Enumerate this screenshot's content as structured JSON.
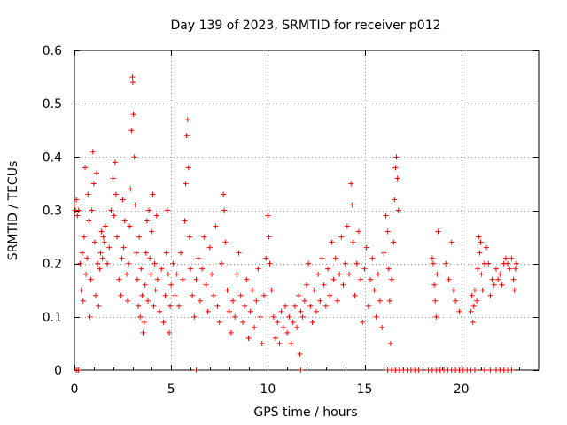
{
  "chart_data": {
    "type": "scatter",
    "title": "Day 139 of 2023, SRMTID for receiver p012",
    "xlabel": "GPS time / hours",
    "ylabel": "SRMTID / TECUs",
    "xlim": [
      0,
      24
    ],
    "ylim": [
      0,
      0.6
    ],
    "xticks": [
      0,
      5,
      10,
      15,
      20
    ],
    "yticks": [
      0,
      0.1,
      0.2,
      0.3,
      0.4,
      0.5,
      0.6
    ],
    "ytick_labels": [
      "0",
      "0.1",
      "0.2",
      "0.3",
      "0.4",
      "0.5",
      "0.6"
    ],
    "grid": true,
    "marker": "+",
    "color": "#ff0000",
    "series": [
      {
        "name": "SRMTID",
        "points": [
          [
            0.0,
            0.31
          ],
          [
            0.05,
            0.3
          ],
          [
            0.1,
            0.32
          ],
          [
            0.15,
            0.29
          ],
          [
            0.2,
            0.3
          ],
          [
            0.3,
            0.2
          ],
          [
            0.35,
            0.15
          ],
          [
            0.4,
            0.22
          ],
          [
            0.45,
            0.13
          ],
          [
            0.5,
            0.25
          ],
          [
            0.55,
            0.38
          ],
          [
            0.6,
            0.18
          ],
          [
            0.65,
            0.21
          ],
          [
            0.7,
            0.33
          ],
          [
            0.75,
            0.28
          ],
          [
            0.8,
            0.1
          ],
          [
            0.85,
            0.17
          ],
          [
            0.9,
            0.3
          ],
          [
            0.95,
            0.41
          ],
          [
            1.0,
            0.35
          ],
          [
            1.05,
            0.24
          ],
          [
            1.1,
            0.14
          ],
          [
            1.15,
            0.37
          ],
          [
            1.2,
            0.2
          ],
          [
            1.25,
            0.12
          ],
          [
            1.3,
            0.19
          ],
          [
            1.35,
            0.22
          ],
          [
            1.4,
            0.26
          ],
          [
            1.45,
            0.21
          ],
          [
            1.5,
            0.25
          ],
          [
            1.55,
            0.24
          ],
          [
            1.6,
            0.27
          ],
          [
            1.7,
            0.2
          ],
          [
            1.8,
            0.23
          ],
          [
            1.9,
            0.3
          ],
          [
            2.0,
            0.36
          ],
          [
            2.05,
            0.29
          ],
          [
            2.1,
            0.39
          ],
          [
            2.15,
            0.33
          ],
          [
            2.2,
            0.25
          ],
          [
            2.3,
            0.17
          ],
          [
            2.4,
            0.14
          ],
          [
            2.45,
            0.21
          ],
          [
            2.5,
            0.32
          ],
          [
            2.55,
            0.23
          ],
          [
            2.6,
            0.28
          ],
          [
            2.7,
            0.18
          ],
          [
            2.75,
            0.13
          ],
          [
            2.8,
            0.2
          ],
          [
            2.85,
            0.27
          ],
          [
            2.9,
            0.34
          ],
          [
            2.95,
            0.45
          ],
          [
            3.0,
            0.55
          ],
          [
            3.02,
            0.54
          ],
          [
            3.05,
            0.48
          ],
          [
            3.1,
            0.4
          ],
          [
            3.15,
            0.31
          ],
          [
            3.2,
            0.22
          ],
          [
            3.25,
            0.17
          ],
          [
            3.3,
            0.12
          ],
          [
            3.35,
            0.25
          ],
          [
            3.4,
            0.1
          ],
          [
            3.45,
            0.19
          ],
          [
            3.5,
            0.14
          ],
          [
            3.55,
            0.07
          ],
          [
            3.6,
            0.09
          ],
          [
            3.65,
            0.16
          ],
          [
            3.7,
            0.22
          ],
          [
            3.75,
            0.28
          ],
          [
            3.8,
            0.13
          ],
          [
            3.85,
            0.3
          ],
          [
            3.9,
            0.21
          ],
          [
            3.95,
            0.18
          ],
          [
            4.0,
            0.26
          ],
          [
            4.05,
            0.33
          ],
          [
            4.1,
            0.12
          ],
          [
            4.15,
            0.2
          ],
          [
            4.2,
            0.15
          ],
          [
            4.25,
            0.29
          ],
          [
            4.3,
            0.17
          ],
          [
            4.4,
            0.11
          ],
          [
            4.5,
            0.19
          ],
          [
            4.6,
            0.09
          ],
          [
            4.7,
            0.14
          ],
          [
            4.75,
            0.22
          ],
          [
            4.8,
            0.3
          ],
          [
            4.85,
            0.18
          ],
          [
            4.9,
            0.07
          ],
          [
            4.95,
            0.12
          ],
          [
            5.0,
            0.16
          ],
          [
            5.1,
            0.2
          ],
          [
            5.2,
            0.14
          ],
          [
            5.3,
            0.18
          ],
          [
            5.4,
            0.12
          ],
          [
            5.5,
            0.22
          ],
          [
            5.6,
            0.17
          ],
          [
            5.7,
            0.28
          ],
          [
            5.75,
            0.35
          ],
          [
            5.8,
            0.44
          ],
          [
            5.85,
            0.47
          ],
          [
            5.9,
            0.38
          ],
          [
            5.95,
            0.25
          ],
          [
            6.0,
            0.19
          ],
          [
            6.1,
            0.14
          ],
          [
            6.2,
            0.1
          ],
          [
            6.3,
            0.17
          ],
          [
            6.4,
            0.21
          ],
          [
            6.5,
            0.13
          ],
          [
            6.6,
            0.19
          ],
          [
            6.7,
            0.25
          ],
          [
            6.8,
            0.16
          ],
          [
            6.9,
            0.11
          ],
          [
            7.0,
            0.23
          ],
          [
            7.1,
            0.18
          ],
          [
            7.2,
            0.14
          ],
          [
            7.3,
            0.27
          ],
          [
            7.4,
            0.12
          ],
          [
            7.5,
            0.09
          ],
          [
            7.6,
            0.2
          ],
          [
            7.7,
            0.33
          ],
          [
            7.75,
            0.3
          ],
          [
            7.8,
            0.24
          ],
          [
            7.9,
            0.15
          ],
          [
            8.0,
            0.11
          ],
          [
            8.1,
            0.07
          ],
          [
            8.2,
            0.13
          ],
          [
            8.3,
            0.1
          ],
          [
            8.4,
            0.18
          ],
          [
            8.5,
            0.22
          ],
          [
            8.6,
            0.14
          ],
          [
            8.7,
            0.09
          ],
          [
            8.8,
            0.12
          ],
          [
            8.9,
            0.17
          ],
          [
            9.0,
            0.06
          ],
          [
            9.1,
            0.11
          ],
          [
            9.2,
            0.15
          ],
          [
            9.3,
            0.08
          ],
          [
            9.4,
            0.13
          ],
          [
            9.5,
            0.19
          ],
          [
            9.6,
            0.1
          ],
          [
            9.7,
            0.05
          ],
          [
            9.8,
            0.14
          ],
          [
            9.9,
            0.21
          ],
          [
            10.0,
            0.29
          ],
          [
            10.05,
            0.25
          ],
          [
            10.1,
            0.2
          ],
          [
            10.2,
            0.15
          ],
          [
            10.3,
            0.1
          ],
          [
            10.4,
            0.06
          ],
          [
            10.5,
            0.09
          ],
          [
            10.6,
            0.05
          ],
          [
            10.7,
            0.11
          ],
          [
            10.8,
            0.08
          ],
          [
            10.9,
            0.12
          ],
          [
            11.0,
            0.07
          ],
          [
            11.1,
            0.1
          ],
          [
            11.2,
            0.05
          ],
          [
            11.3,
            0.09
          ],
          [
            11.4,
            0.12
          ],
          [
            11.5,
            0.08
          ],
          [
            11.6,
            0.14
          ],
          [
            11.65,
            0.03
          ],
          [
            11.7,
            0.11
          ],
          [
            11.8,
            0.1
          ],
          [
            11.9,
            0.13
          ],
          [
            12.0,
            0.16
          ],
          [
            12.1,
            0.2
          ],
          [
            12.2,
            0.12
          ],
          [
            12.3,
            0.09
          ],
          [
            12.4,
            0.15
          ],
          [
            12.5,
            0.11
          ],
          [
            12.6,
            0.18
          ],
          [
            12.7,
            0.13
          ],
          [
            12.8,
            0.21
          ],
          [
            12.9,
            0.16
          ],
          [
            13.0,
            0.12
          ],
          [
            13.1,
            0.19
          ],
          [
            13.2,
            0.14
          ],
          [
            13.3,
            0.24
          ],
          [
            13.4,
            0.17
          ],
          [
            13.5,
            0.21
          ],
          [
            13.6,
            0.13
          ],
          [
            13.7,
            0.18
          ],
          [
            13.8,
            0.25
          ],
          [
            13.9,
            0.16
          ],
          [
            14.0,
            0.2
          ],
          [
            14.1,
            0.27
          ],
          [
            14.2,
            0.18
          ],
          [
            14.3,
            0.35
          ],
          [
            14.35,
            0.31
          ],
          [
            14.4,
            0.24
          ],
          [
            14.5,
            0.14
          ],
          [
            14.6,
            0.2
          ],
          [
            14.7,
            0.26
          ],
          [
            14.8,
            0.17
          ],
          [
            14.9,
            0.09
          ],
          [
            15.0,
            0.19
          ],
          [
            15.1,
            0.23
          ],
          [
            15.2,
            0.12
          ],
          [
            15.3,
            0.17
          ],
          [
            15.4,
            0.21
          ],
          [
            15.5,
            0.15
          ],
          [
            15.6,
            0.1
          ],
          [
            15.7,
            0.18
          ],
          [
            15.8,
            0.13
          ],
          [
            15.9,
            0.08
          ],
          [
            16.0,
            0.22
          ],
          [
            16.1,
            0.29
          ],
          [
            16.2,
            0.26
          ],
          [
            16.25,
            0.19
          ],
          [
            16.3,
            0.13
          ],
          [
            16.35,
            0.05
          ],
          [
            16.4,
            0.17
          ],
          [
            16.5,
            0.24
          ],
          [
            16.55,
            0.32
          ],
          [
            16.6,
            0.38
          ],
          [
            16.65,
            0.4
          ],
          [
            16.7,
            0.36
          ],
          [
            16.75,
            0.3
          ],
          [
            18.5,
            0.21
          ],
          [
            18.55,
            0.2
          ],
          [
            18.6,
            0.16
          ],
          [
            18.65,
            0.13
          ],
          [
            18.7,
            0.1
          ],
          [
            18.75,
            0.18
          ],
          [
            18.8,
            0.26
          ],
          [
            19.2,
            0.2
          ],
          [
            19.35,
            0.17
          ],
          [
            19.5,
            0.24
          ],
          [
            19.6,
            0.15
          ],
          [
            19.7,
            0.13
          ],
          [
            19.9,
            0.11
          ],
          [
            20.5,
            0.11
          ],
          [
            20.55,
            0.14
          ],
          [
            20.6,
            0.09
          ],
          [
            20.65,
            0.12
          ],
          [
            20.7,
            0.15
          ],
          [
            20.8,
            0.13
          ],
          [
            20.85,
            0.19
          ],
          [
            20.9,
            0.25
          ],
          [
            20.95,
            0.22
          ],
          [
            21.0,
            0.24
          ],
          [
            21.05,
            0.18
          ],
          [
            21.1,
            0.15
          ],
          [
            21.2,
            0.2
          ],
          [
            21.3,
            0.23
          ],
          [
            21.4,
            0.2
          ],
          [
            21.5,
            0.14
          ],
          [
            21.6,
            0.17
          ],
          [
            21.7,
            0.16
          ],
          [
            21.8,
            0.19
          ],
          [
            21.9,
            0.17
          ],
          [
            22.0,
            0.18
          ],
          [
            22.1,
            0.16
          ],
          [
            22.2,
            0.2
          ],
          [
            22.3,
            0.21
          ],
          [
            22.4,
            0.2
          ],
          [
            22.5,
            0.19
          ],
          [
            22.6,
            0.21
          ],
          [
            22.7,
            0.17
          ],
          [
            22.75,
            0.15
          ],
          [
            22.8,
            0.19
          ],
          [
            22.85,
            0.2
          ],
          [
            0.1,
            0.0
          ],
          [
            0.2,
            0.0
          ],
          [
            6.3,
            0.0
          ],
          [
            11.7,
            0.0
          ],
          [
            16.2,
            0.0
          ],
          [
            16.4,
            0.0
          ],
          [
            16.6,
            0.0
          ],
          [
            16.8,
            0.0
          ],
          [
            17.0,
            0.0
          ],
          [
            17.2,
            0.0
          ],
          [
            17.4,
            0.0
          ],
          [
            17.6,
            0.0
          ],
          [
            17.8,
            0.0
          ],
          [
            18.3,
            0.0
          ],
          [
            18.5,
            0.0
          ],
          [
            18.7,
            0.0
          ],
          [
            18.9,
            0.0
          ],
          [
            19.1,
            0.0
          ],
          [
            19.3,
            0.0
          ],
          [
            19.5,
            0.0
          ],
          [
            19.7,
            0.0
          ],
          [
            19.9,
            0.0
          ],
          [
            20.1,
            0.0
          ],
          [
            20.3,
            0.0
          ],
          [
            20.5,
            0.0
          ],
          [
            20.7,
            0.0
          ],
          [
            21.2,
            0.0
          ],
          [
            21.5,
            0.0
          ],
          [
            21.8,
            0.0
          ],
          [
            22.0,
            0.0
          ],
          [
            22.2,
            0.0
          ],
          [
            22.4,
            0.0
          ],
          [
            22.6,
            0.0
          ]
        ]
      }
    ]
  }
}
